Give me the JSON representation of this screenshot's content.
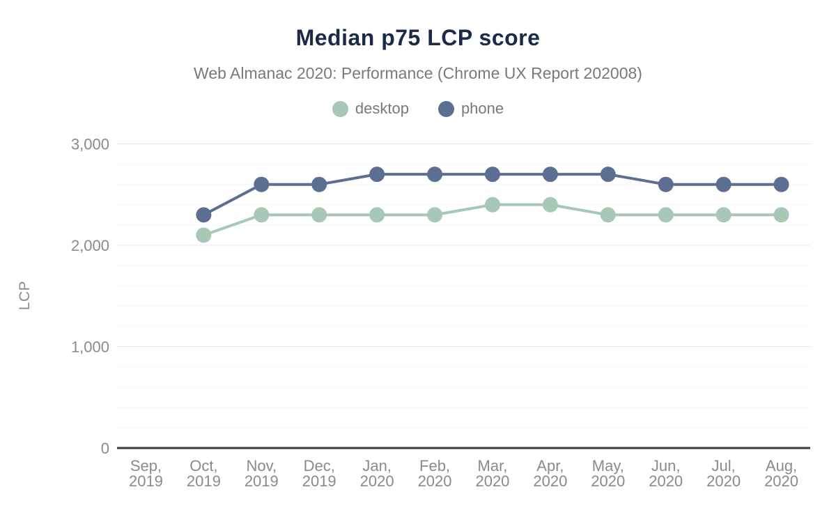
{
  "chart_data": {
    "type": "line",
    "title": "Median p75 LCP score",
    "subtitle": "Web Almanac 2020: Performance (Chrome UX Report 202008)",
    "ylabel": "LCP",
    "xlabel": "",
    "ylim": [
      0,
      3000
    ],
    "y_ticks": [
      0,
      1000,
      2000,
      3000
    ],
    "y_minor_step": 200,
    "grid": true,
    "legend_position": "top-center",
    "categories": [
      "Sep, 2019",
      "Oct, 2019",
      "Nov, 2019",
      "Dec, 2019",
      "Jan, 2020",
      "Feb, 2020",
      "Mar, 2020",
      "Apr, 2020",
      "May, 2020",
      "Jun, 2020",
      "Jul, 2020",
      "Aug, 2020"
    ],
    "series": [
      {
        "name": "desktop",
        "color": "#a6c8b4",
        "values": [
          null,
          2100,
          2300,
          2300,
          2300,
          2300,
          2400,
          2400,
          2300,
          2300,
          2300,
          2300
        ]
      },
      {
        "name": "phone",
        "color": "#5c6e91",
        "values": [
          null,
          2300,
          2600,
          2600,
          2700,
          2700,
          2700,
          2700,
          2700,
          2600,
          2600,
          2600
        ]
      }
    ]
  },
  "colors": {
    "title": "#1b2a47",
    "subtitle": "#77797c",
    "axis_label": "#878b91",
    "gridline_major": "#e3e3e3",
    "gridline_minor": "#f5f5f5",
    "axis_line": "#3a3a3a",
    "background": "#ffffff"
  }
}
